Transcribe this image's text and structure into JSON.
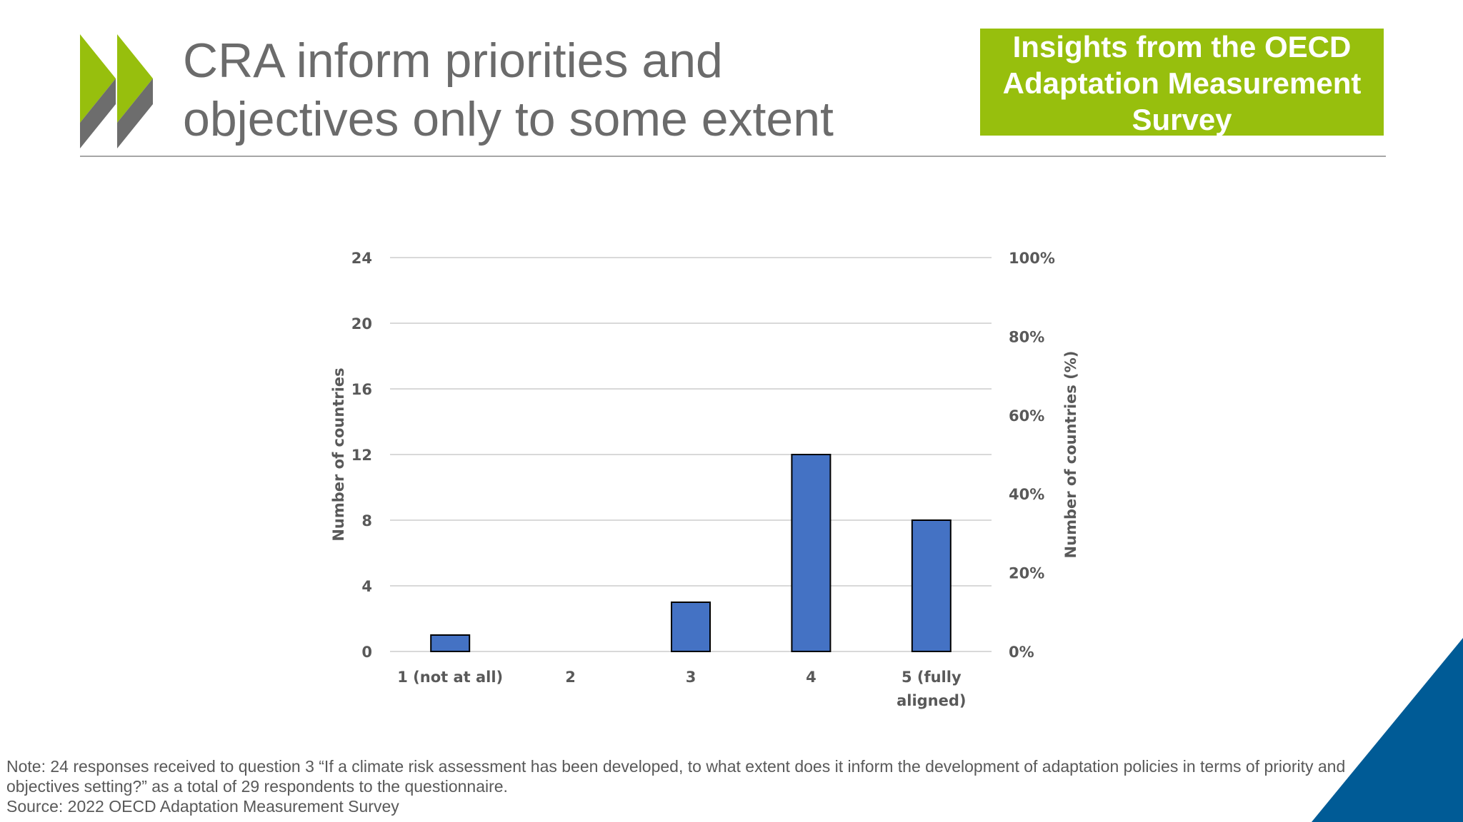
{
  "slide": {
    "title_lines": [
      "CRA inform priorities and",
      "objectives only to some extent"
    ],
    "badge_lines": [
      "Insights from the OECD",
      "Adaptation Measurement",
      "Survey"
    ],
    "note_lines": [
      "Note: 24 responses received to question 3 “If a climate risk assessment has been developed, to what extent does it inform the development of adaptation policies in terms of priority and",
      "objectives setting?” as a total of 29 respondents to the questionnaire.",
      "Source: 2022 OECD Adaptation Measurement Survey"
    ]
  },
  "colors": {
    "title": "#6b6b6b",
    "badge": "#97bf0d",
    "logo_green": "#97bf0d",
    "logo_grey": "#6d6d6d",
    "bar_fill": "#4472c4",
    "bar_stroke": "#000000",
    "grid": "#d9d9d9",
    "axis_text": "#595959",
    "corner": "#005b96"
  },
  "chart_data": {
    "type": "bar",
    "categories": [
      [
        "1 (not at all)"
      ],
      [
        "2"
      ],
      [
        "3"
      ],
      [
        "4"
      ],
      [
        "5 (fully",
        "aligned)"
      ]
    ],
    "series": [
      {
        "values": [
          1,
          0,
          3,
          12,
          8
        ]
      }
    ],
    "ylabel": "Number of countries",
    "y2label": "Number of countries (%)",
    "ylim": [
      0,
      24
    ],
    "yticks": [
      "0",
      "4",
      "8",
      "12",
      "16",
      "20",
      "24"
    ],
    "y2lim": [
      0,
      100
    ],
    "y2ticks": [
      "0%",
      "20%",
      "40%",
      "60%",
      "80%",
      "100%"
    ],
    "grid": true,
    "legend": "none"
  }
}
